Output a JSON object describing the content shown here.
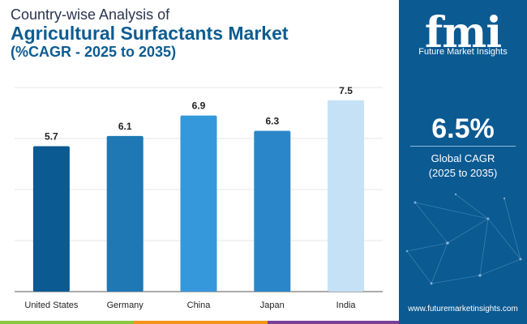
{
  "header": {
    "line1": "Country-wise Analysis of",
    "line2": "Agricultural Surfactants Market",
    "line3": "(%CAGR - 2025 to 2035)"
  },
  "sidebar": {
    "logo_mark": "fmi",
    "logo_text": "Future Market Insights",
    "cagr_value": "6.5%",
    "cagr_label": "Global CAGR",
    "cagr_period": "(2025 to 2035)",
    "url": "www.futuremarketinsights.com"
  },
  "colors": {
    "panel": "#0b5a92",
    "bars": [
      "#0b5a92",
      "#1f78b4",
      "#3498db",
      "#2a86c8",
      "#c5e1f5"
    ],
    "stripes": [
      "#8dc63f",
      "#f7941d",
      "#7b3f98"
    ]
  },
  "chart_data": {
    "type": "bar",
    "categories": [
      "United States",
      "Germany",
      "China",
      "Japan",
      "India"
    ],
    "values": [
      5.7,
      6.1,
      6.9,
      6.3,
      7.5
    ],
    "ylim": [
      0,
      8
    ],
    "grid": true,
    "legend": "none"
  }
}
